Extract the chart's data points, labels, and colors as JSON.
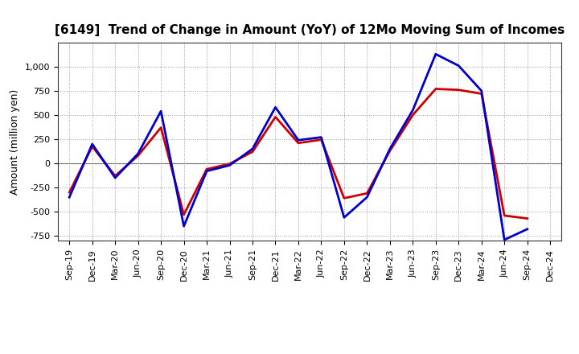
{
  "title": "[6149]  Trend of Change in Amount (YoY) of 12Mo Moving Sum of Incomes",
  "ylabel": "Amount (million yen)",
  "background_color": "#ffffff",
  "plot_bg_color": "#ffffff",
  "grid_color": "#999999",
  "x_labels": [
    "Sep-19",
    "Dec-19",
    "Mar-20",
    "Jun-20",
    "Sep-20",
    "Dec-20",
    "Mar-21",
    "Jun-21",
    "Sep-21",
    "Dec-21",
    "Mar-22",
    "Jun-22",
    "Sep-22",
    "Dec-22",
    "Mar-23",
    "Jun-23",
    "Sep-23",
    "Dec-23",
    "Mar-24",
    "Jun-24",
    "Sep-24",
    "Dec-24"
  ],
  "ordinary_income": [
    -350,
    200,
    -150,
    100,
    540,
    -650,
    -80,
    -20,
    150,
    580,
    240,
    270,
    -560,
    -350,
    150,
    550,
    1130,
    1010,
    750,
    -790,
    -680,
    null
  ],
  "net_income": [
    -300,
    175,
    -130,
    80,
    370,
    -530,
    -60,
    -5,
    120,
    480,
    210,
    245,
    -360,
    -310,
    130,
    500,
    770,
    760,
    720,
    -540,
    -570,
    null
  ],
  "ylim": [
    -800,
    1250
  ],
  "yticks": [
    -750,
    -500,
    -250,
    0,
    250,
    500,
    750,
    1000
  ],
  "ordinary_color": "#0000cc",
  "net_color": "#cc0000",
  "line_width": 2.0,
  "title_fontsize": 11,
  "legend_fontsize": 10,
  "axis_fontsize": 9,
  "tick_fontsize": 8
}
